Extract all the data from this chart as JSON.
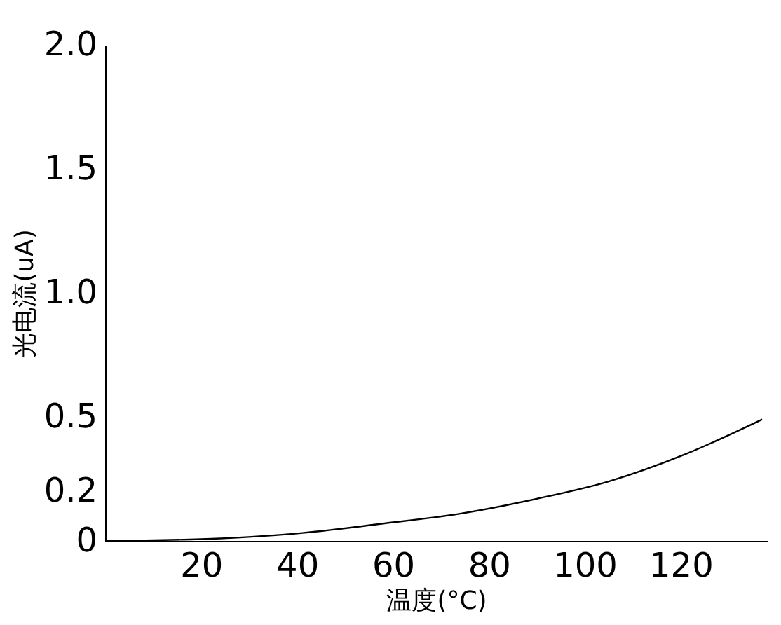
{
  "chart_data": {
    "type": "line",
    "xlabel": "温度(°C)",
    "ylabel": "光电流(uA)",
    "x": [
      0,
      24,
      40,
      58,
      74,
      90,
      105,
      121,
      137
    ],
    "series": [
      {
        "color": "#000000",
        "values": [
          0,
          0.01,
          0.03,
          0.07,
          0.11,
          0.17,
          0.24,
          0.35,
          0.49
        ]
      }
    ],
    "xlim": [
      0,
      138
    ],
    "xticks": [
      20,
      40,
      60,
      80,
      100,
      120
    ],
    "ylim": [
      0,
      2
    ],
    "yticks": [
      0,
      0.2,
      0.5,
      {
        "value": 1,
        "label": "1.0"
      },
      1.5,
      {
        "value": 2,
        "label": "2.0"
      }
    ],
    "grid": false,
    "marker": "none",
    "line_style": "solid"
  }
}
